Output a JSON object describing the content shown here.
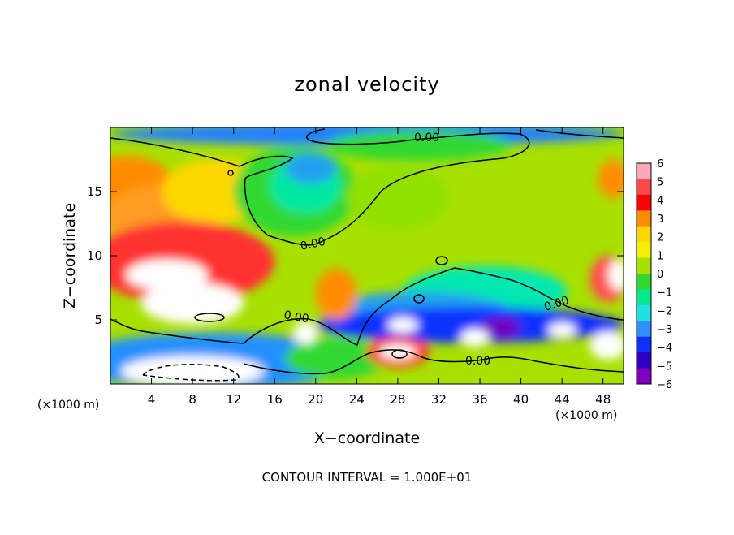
{
  "chart_data": {
    "type": "heatmap",
    "title": "zonal velocity",
    "xlabel": "X−coordinate",
    "ylabel": "Z−coordinate",
    "x_unit": "(×1000 m)",
    "y_unit": "(×1000 m)",
    "xlim": [
      0,
      50
    ],
    "ylim": [
      0,
      20
    ],
    "x_ticks": [
      4,
      8,
      12,
      16,
      20,
      24,
      28,
      32,
      36,
      40,
      44,
      48
    ],
    "y_ticks": [
      5,
      10,
      15
    ],
    "footer": "CONTOUR INTERVAL = 1.000E+01",
    "contour_label": "0.00",
    "colorbar": {
      "ticks": [
        "6",
        "5",
        "4",
        "3",
        "2",
        "1",
        "0",
        "−1",
        "−2",
        "−3",
        "−4",
        "−5",
        "−6"
      ],
      "colors": [
        "#f8a8b8",
        "#ff4848",
        "#ff0000",
        "#ff8c00",
        "#ffd700",
        "#f0f000",
        "#a8e000",
        "#30d830",
        "#00e890",
        "#20e0e0",
        "#3090ff",
        "#1030ff",
        "#3000c0",
        "#8000c0"
      ]
    },
    "field": {
      "background": "#a8e000",
      "regions": [
        {
          "level": "3",
          "color": "#ff8c00",
          "x": 1.5,
          "y": 15.8,
          "rx": 4.5,
          "ry": 2.0
        },
        {
          "level": "3",
          "color": "#ff9c20",
          "x": 5.0,
          "y": 13.0,
          "rx": 5.5,
          "ry": 2.5
        },
        {
          "level": "2",
          "color": "#ffd700",
          "x": 10.0,
          "y": 15.0,
          "rx": 5.0,
          "ry": 2.5
        },
        {
          "level": "4",
          "color": "#ff3030",
          "x": 7.0,
          "y": 9.5,
          "rx": 9.0,
          "ry": 3.2
        },
        {
          "level": "6",
          "color": "#ffffff",
          "x": 5.5,
          "y": 8.5,
          "rx": 4.0,
          "ry": 1.2
        },
        {
          "level": "6",
          "color": "#ffffff",
          "x": 8.0,
          "y": 6.3,
          "rx": 5.0,
          "ry": 1.6
        },
        {
          "level": "-1",
          "color": "#30d830",
          "x": 18.0,
          "y": 15.0,
          "rx": 6.0,
          "ry": 3.5
        },
        {
          "level": "-2",
          "color": "#00e8a0",
          "x": 19.0,
          "y": 15.5,
          "rx": 3.5,
          "ry": 2.2
        },
        {
          "level": "-3",
          "color": "#20a0f0",
          "x": 19.5,
          "y": 16.8,
          "rx": 2.5,
          "ry": 1.2
        },
        {
          "level": "-3",
          "color": "#2080ff",
          "x": 25.0,
          "y": 19.5,
          "rx": 25.0,
          "ry": 0.9
        },
        {
          "level": "-1",
          "color": "#30d830",
          "x": 30.0,
          "y": 18.6,
          "rx": 9.0,
          "ry": 1.2
        },
        {
          "level": "0",
          "color": "#90e000",
          "x": 28.0,
          "y": 14.5,
          "rx": 5.0,
          "ry": 2.5
        },
        {
          "level": "-2",
          "color": "#00e8b0",
          "x": 36.5,
          "y": 7.2,
          "rx": 8.0,
          "ry": 2.0
        },
        {
          "level": "-3",
          "color": "#20a0f0",
          "x": 30.0,
          "y": 5.6,
          "rx": 9.0,
          "ry": 1.6
        },
        {
          "level": "-4",
          "color": "#1030ff",
          "x": 35.0,
          "y": 4.6,
          "rx": 15.0,
          "ry": 1.4
        },
        {
          "level": "-6",
          "color": "#7000c0",
          "x": 38.0,
          "y": 4.4,
          "rx": 2.0,
          "ry": 0.8
        },
        {
          "level": "-3",
          "color": "#2090ff",
          "x": 10.0,
          "y": 1.8,
          "rx": 14.0,
          "ry": 2.2
        },
        {
          "level": "-1",
          "color": "#30d830",
          "x": 22.0,
          "y": 2.0,
          "rx": 5.0,
          "ry": 1.6
        },
        {
          "level": "3",
          "color": "#ff8c00",
          "x": 22.0,
          "y": 7.0,
          "rx": 2.0,
          "ry": 2.0
        },
        {
          "level": "6",
          "color": "#ffffff",
          "x": 8.0,
          "y": 1.0,
          "rx": 7.0,
          "ry": 1.2
        },
        {
          "level": "4",
          "color": "#ff2020",
          "x": 28.0,
          "y": 2.5,
          "rx": 3.0,
          "ry": 1.2
        },
        {
          "level": "6",
          "color": "#ffffff",
          "x": 28.0,
          "y": 2.5,
          "rx": 1.8,
          "ry": 0.6
        },
        {
          "level": "6",
          "color": "#ffffff",
          "x": 28.5,
          "y": 4.6,
          "rx": 1.5,
          "ry": 0.6
        },
        {
          "level": "6",
          "color": "#ffffff",
          "x": 35.5,
          "y": 3.6,
          "rx": 1.4,
          "ry": 0.7
        },
        {
          "level": "6",
          "color": "#ffffff",
          "x": 44.0,
          "y": 4.2,
          "rx": 1.4,
          "ry": 0.6
        },
        {
          "level": "6",
          "color": "#ffffff",
          "x": 19.0,
          "y": 4.0,
          "rx": 1.2,
          "ry": 0.9
        },
        {
          "level": "6",
          "color": "#ffffff",
          "x": 48.5,
          "y": 3.0,
          "rx": 1.8,
          "ry": 1.1
        },
        {
          "level": "5",
          "color": "#ff5050",
          "x": 48.5,
          "y": 8.2,
          "rx": 1.8,
          "ry": 1.8
        },
        {
          "level": "6",
          "color": "#ffffff",
          "x": 49.5,
          "y": 8.5,
          "rx": 1.0,
          "ry": 1.2
        },
        {
          "level": "3",
          "color": "#ff8c00",
          "x": 49.0,
          "y": 16.0,
          "rx": 1.5,
          "ry": 1.5
        }
      ]
    }
  }
}
